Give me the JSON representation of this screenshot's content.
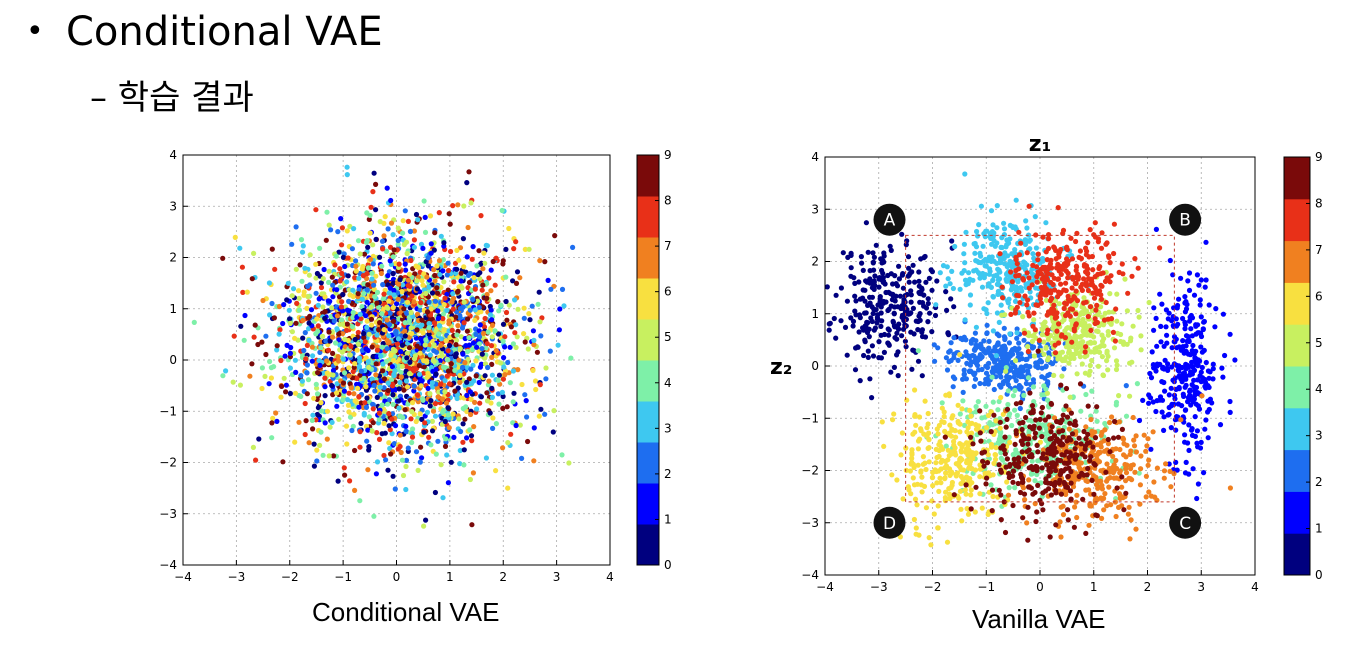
{
  "slide": {
    "bullet": "•",
    "title": "Conditional VAE",
    "subtitle": "– 학습 결과",
    "captions": [
      "Conditional VAE",
      "Vanilla VAE"
    ]
  },
  "colorbar": {
    "ticks": [
      "0",
      "1",
      "2",
      "3",
      "4",
      "5",
      "6",
      "7",
      "8",
      "9"
    ],
    "colors": [
      "#00007f",
      "#0000ff",
      "#1e6ef0",
      "#3ec8f0",
      "#7ef0a8",
      "#c8f060",
      "#f8e040",
      "#f08020",
      "#e83018",
      "#7a0a0a"
    ]
  },
  "chart_data": [
    {
      "type": "scatter",
      "title": "",
      "xlabel": "",
      "ylabel": "",
      "xlim": [
        -4,
        4
      ],
      "ylim": [
        -4,
        4
      ],
      "xticks": [
        "−4",
        "−3",
        "−2",
        "−1",
        "0",
        "1",
        "2",
        "3",
        "4"
      ],
      "yticks": [
        "−4",
        "−3",
        "−2",
        "−1",
        "0",
        "1",
        "2",
        "3",
        "4"
      ],
      "grid": true,
      "colorbar": "right",
      "distribution": "all classes 0–9 mixed in one cloud centered near (0.1, 0.4), std ≈ 1.1"
    },
    {
      "type": "scatter",
      "title": "",
      "xlabel": "z₁",
      "ylabel": "z₂",
      "xlim": [
        -4,
        4
      ],
      "ylim": [
        -4,
        4
      ],
      "xticks": [
        "−4",
        "−3",
        "−2",
        "−1",
        "0",
        "1",
        "2",
        "3",
        "4"
      ],
      "yticks": [
        "−4",
        "−3",
        "−2",
        "−1",
        "0",
        "1",
        "2",
        "3",
        "4"
      ],
      "grid": true,
      "colorbar": "right",
      "annotations": [
        "A",
        "B",
        "C",
        "D"
      ],
      "annotation_points": [
        [
          -2.8,
          2.8
        ],
        [
          2.7,
          2.8
        ],
        [
          2.7,
          -3.0
        ],
        [
          -2.8,
          -3.0
        ]
      ],
      "box": {
        "x": [
          -2.5,
          2.5
        ],
        "y": [
          -2.6,
          2.5
        ]
      },
      "clusters": [
        {
          "class": 0,
          "cx": -2.8,
          "cy": 1.2,
          "sx": 0.5,
          "sy": 0.6
        },
        {
          "class": 1,
          "cx": 2.7,
          "cy": 0.0,
          "sx": 0.3,
          "sy": 0.9
        },
        {
          "class": 2,
          "cx": -0.7,
          "cy": 0.1,
          "sx": 0.5,
          "sy": 0.3
        },
        {
          "class": 3,
          "cx": -0.6,
          "cy": 1.8,
          "sx": 0.5,
          "sy": 0.5
        },
        {
          "class": 4,
          "cx": -0.1,
          "cy": -1.4,
          "sx": 0.7,
          "sy": 0.5
        },
        {
          "class": 5,
          "cx": 0.7,
          "cy": 0.6,
          "sx": 0.5,
          "sy": 0.4
        },
        {
          "class": 6,
          "cx": -1.6,
          "cy": -1.8,
          "sx": 0.5,
          "sy": 0.6
        },
        {
          "class": 7,
          "cx": 1.0,
          "cy": -2.0,
          "sx": 0.7,
          "sy": 0.5
        },
        {
          "class": 8,
          "cx": 0.5,
          "cy": 1.6,
          "sx": 0.5,
          "sy": 0.5
        },
        {
          "class": 9,
          "cx": 0.1,
          "cy": -1.8,
          "sx": 0.6,
          "sy": 0.6
        }
      ]
    }
  ]
}
